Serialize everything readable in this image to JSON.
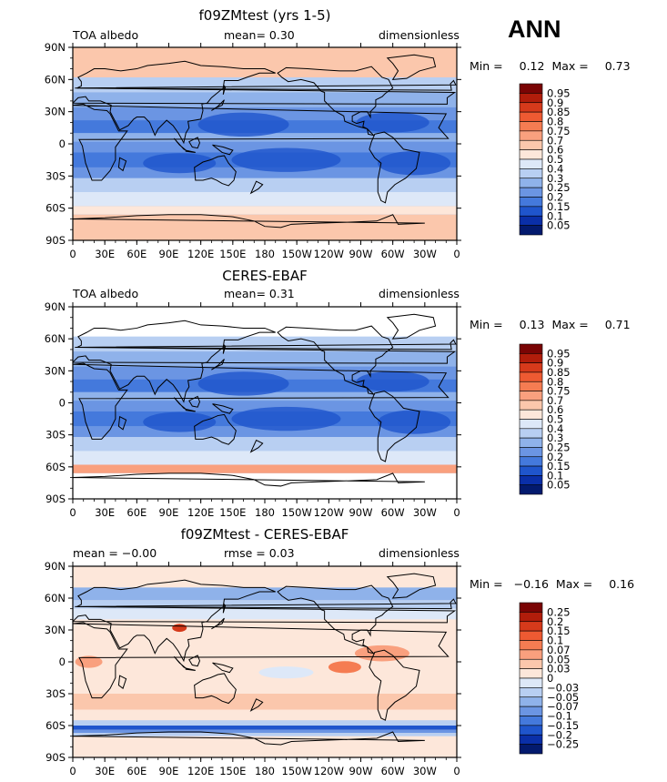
{
  "season": "ANN",
  "lon_ticks": [
    "0",
    "30E",
    "60E",
    "90E",
    "120E",
    "150E",
    "180",
    "150W",
    "120W",
    "90W",
    "60W",
    "30W",
    "0"
  ],
  "lat_ticks": [
    "90N",
    "60N",
    "30N",
    "0",
    "30S",
    "60S",
    "90S"
  ],
  "panels": [
    {
      "title": "f09ZMtest (yrs 1-5)",
      "left_hdr": "TOA albedo",
      "mid_hdr": "mean=   0.30",
      "right_hdr": "dimensionless",
      "min_label": "Min =",
      "min_value": "0.12",
      "max_label": "Max =",
      "max_value": "0.73",
      "colorbar_labels": [
        "0.95",
        "0.9",
        "0.85",
        "0.8",
        "0.75",
        "0.7",
        "0.6",
        "0.5",
        "0.4",
        "0.3",
        "0.25",
        "0.2",
        "0.15",
        "0.1",
        "0.05"
      ]
    },
    {
      "title": "CERES-EBAF",
      "left_hdr": "TOA albedo",
      "mid_hdr": "mean=   0.31",
      "right_hdr": "dimensionless",
      "min_label": "Min =",
      "min_value": "0.13",
      "max_label": "Max =",
      "max_value": "0.71",
      "colorbar_labels": [
        "0.95",
        "0.9",
        "0.85",
        "0.8",
        "0.75",
        "0.7",
        "0.6",
        "0.5",
        "0.4",
        "0.3",
        "0.25",
        "0.2",
        "0.15",
        "0.1",
        "0.05"
      ]
    },
    {
      "title": "f09ZMtest - CERES-EBAF",
      "left_hdr": "mean =   −0.00",
      "mid_hdr": "rmse =    0.03",
      "right_hdr": "dimensionless",
      "min_label": "Min =",
      "min_value": "−0.16",
      "max_label": "Max =",
      "max_value": "0.16",
      "colorbar_labels": [
        "0.25",
        "0.2",
        "0.15",
        "0.1",
        "0.07",
        "0.05",
        "0.03",
        "0",
        "−0.03",
        "−0.05",
        "−0.07",
        "−0.1",
        "−0.15",
        "−0.2",
        "−0.25"
      ]
    }
  ],
  "colors": {
    "abs_scale": [
      "#7a0404",
      "#b11d0b",
      "#d63a1b",
      "#ee5a32",
      "#f57c52",
      "#f9a07e",
      "#fbc7ac",
      "#fde7da",
      "#dde8f8",
      "#b8cff2",
      "#8fb2ea",
      "#6b95e3",
      "#4479dc",
      "#1f55cc",
      "#0a2fa8",
      "#031a6e"
    ],
    "diff_scale": [
      "#7a0404",
      "#b11d0b",
      "#d63a1b",
      "#ee5a32",
      "#f57c52",
      "#f9a07e",
      "#fbc7ac",
      "#fde7da",
      "#dde8f8",
      "#b8cff2",
      "#8fb2ea",
      "#6b95e3",
      "#4479dc",
      "#1f55cc",
      "#0a2fa8",
      "#031a6e"
    ]
  },
  "chart_data": [
    {
      "type": "heatmap",
      "title": "f09ZMtest (yrs 1-5)",
      "variable": "TOA albedo",
      "units": "dimensionless",
      "mean": 0.3,
      "min": 0.12,
      "max": 0.73,
      "x_ticks": [
        "0",
        "30E",
        "60E",
        "90E",
        "120E",
        "150E",
        "180",
        "150W",
        "120W",
        "90W",
        "60W",
        "30W",
        "0"
      ],
      "y_ticks": [
        "90N",
        "60N",
        "30N",
        "0",
        "30S",
        "60S",
        "90S"
      ],
      "contour_levels": [
        0.05,
        0.1,
        0.15,
        0.2,
        0.25,
        0.3,
        0.4,
        0.5,
        0.6,
        0.7,
        0.75,
        0.8,
        0.85,
        0.9,
        0.95
      ]
    },
    {
      "type": "heatmap",
      "title": "CERES-EBAF",
      "variable": "TOA albedo",
      "units": "dimensionless",
      "mean": 0.31,
      "min": 0.13,
      "max": 0.71,
      "x_ticks": [
        "0",
        "30E",
        "60E",
        "90E",
        "120E",
        "150E",
        "180",
        "150W",
        "120W",
        "90W",
        "60W",
        "30W",
        "0"
      ],
      "y_ticks": [
        "90N",
        "60N",
        "30N",
        "0",
        "30S",
        "60S",
        "90S"
      ],
      "contour_levels": [
        0.05,
        0.1,
        0.15,
        0.2,
        0.25,
        0.3,
        0.4,
        0.5,
        0.6,
        0.7,
        0.75,
        0.8,
        0.85,
        0.9,
        0.95
      ]
    },
    {
      "type": "heatmap",
      "title": "f09ZMtest - CERES-EBAF",
      "units": "dimensionless",
      "mean": -0.0,
      "rmse": 0.03,
      "min": -0.16,
      "max": 0.16,
      "x_ticks": [
        "0",
        "30E",
        "60E",
        "90E",
        "120E",
        "150E",
        "180",
        "150W",
        "120W",
        "90W",
        "60W",
        "30W",
        "0"
      ],
      "y_ticks": [
        "90N",
        "60N",
        "30N",
        "0",
        "30S",
        "60S",
        "90S"
      ],
      "contour_levels": [
        -0.25,
        -0.2,
        -0.15,
        -0.1,
        -0.07,
        -0.05,
        -0.03,
        0,
        0.03,
        0.05,
        0.07,
        0.1,
        0.15,
        0.2,
        0.25
      ]
    }
  ]
}
